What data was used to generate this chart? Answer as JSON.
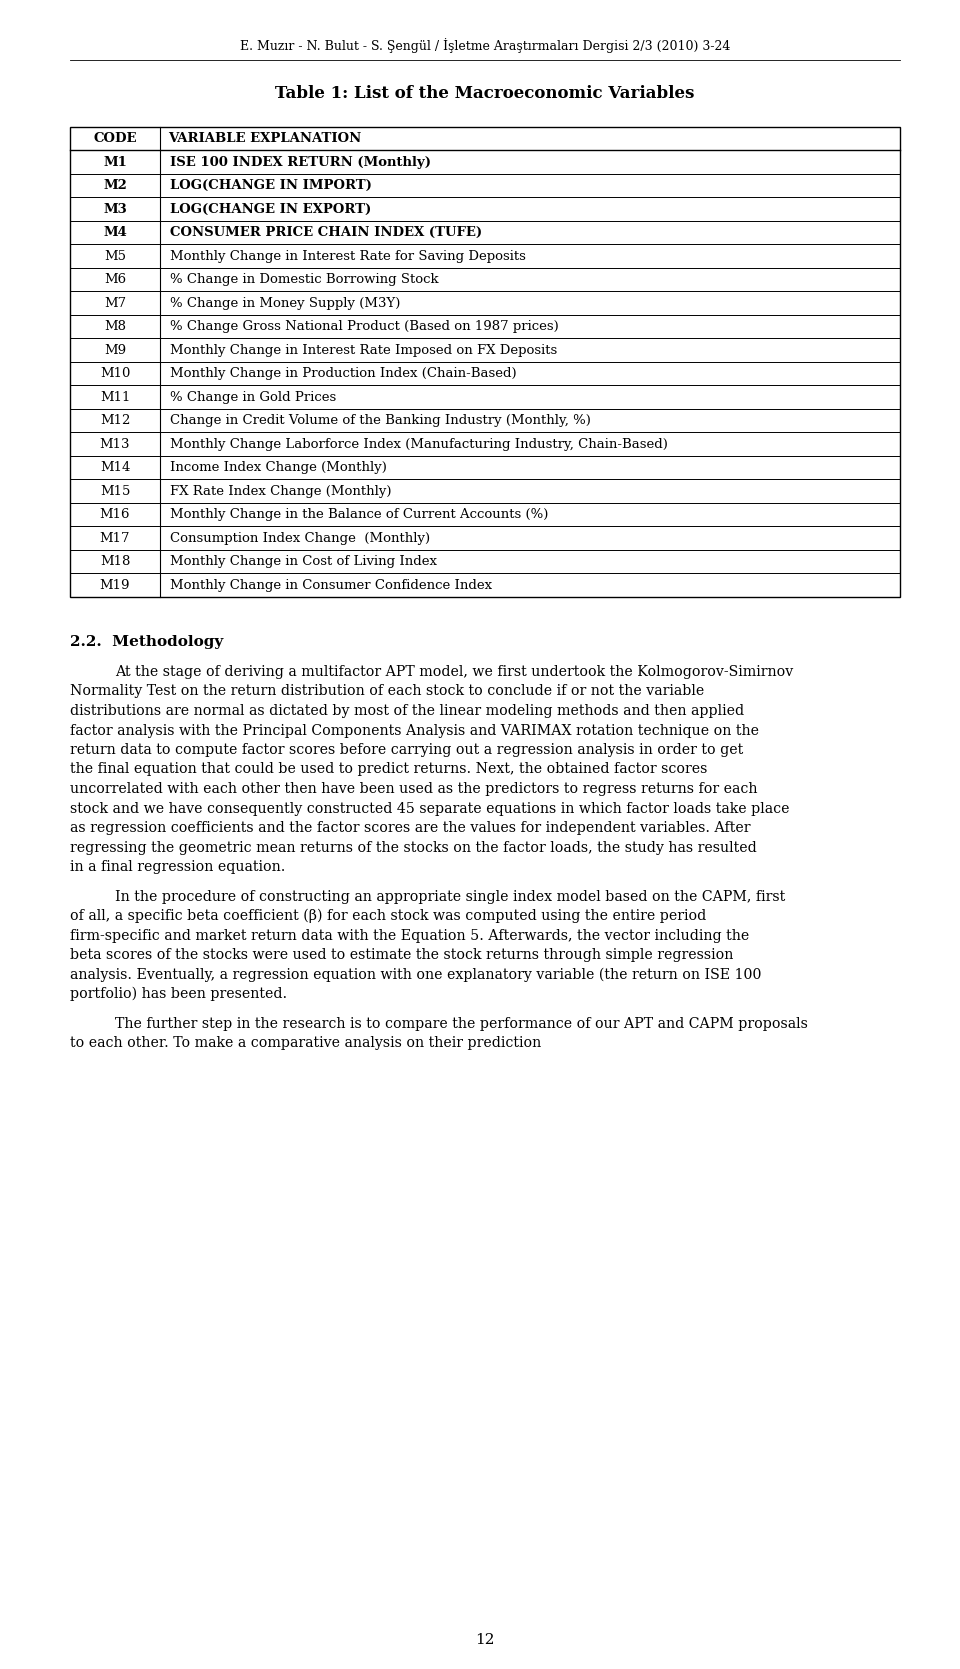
{
  "header": "E. Muzır - N. Bulut - S. Şengül / İşletme Araştırmaları Dergisi 2/3 (2010) 3-24",
  "table_title": "Table 1: List of the Macroeconomic Variables",
  "col1_header": "CODE",
  "col2_header": "VARIABLE EXPLANATION",
  "rows": [
    [
      "M1",
      "ISE 100 INDEX RETURN (Monthly)"
    ],
    [
      "M2",
      "LOG(CHANGE IN IMPORT)"
    ],
    [
      "M3",
      "LOG(CHANGE IN EXPORT)"
    ],
    [
      "M4",
      "CONSUMER PRICE CHAIN INDEX (TUFE)"
    ],
    [
      "M5",
      "Monthly Change in Interest Rate for Saving Deposits"
    ],
    [
      "M6",
      "% Change in Domestic Borrowing Stock"
    ],
    [
      "M7",
      "% Change in Money Supply (M3Y)"
    ],
    [
      "M8",
      "% Change Gross National Product (Based on 1987 prices)"
    ],
    [
      "M9",
      "Monthly Change in Interest Rate Imposed on FX Deposits"
    ],
    [
      "M10",
      "Monthly Change in Production Index (Chain-Based)"
    ],
    [
      "M11",
      "% Change in Gold Prices"
    ],
    [
      "M12",
      "Change in Credit Volume of the Banking Industry (Monthly, %)"
    ],
    [
      "M13",
      "Monthly Change Laborforce Index (Manufacturing Industry, Chain-Based)"
    ],
    [
      "M14",
      "Income Index Change (Monthly)"
    ],
    [
      "M15",
      "FX Rate Index Change (Monthly)"
    ],
    [
      "M16",
      "Monthly Change in the Balance of Current Accounts (%)"
    ],
    [
      "M17",
      "Consumption Index Change  (Monthly)"
    ],
    [
      "M18",
      "Monthly Change in Cost of Living Index"
    ],
    [
      "M19",
      "Monthly Change in Consumer Confidence Index"
    ]
  ],
  "section_title": "2.2.  Methodology",
  "paragraph1": "At the stage of deriving a multifactor APT model, we first undertook the Kolmogorov-Simirnov Normality Test on the return distribution of each stock to conclude if or not the variable distributions are normal as dictated by most of the linear modeling methods and then applied factor analysis with the Principal Components Analysis and VARIMAX rotation technique on the return data to compute factor scores before carrying out a regression analysis in order to get the final equation that could be used to predict returns. Next, the obtained factor scores uncorrelated with each other then have been used as the predictors to regress returns for each stock and we have consequently constructed 45 separate equations in which factor loads take place as regression coefficients and the factor scores are the values for independent variables. After regressing the geometric mean returns of the stocks on the factor loads, the study has resulted in a final regression equation.",
  "paragraph2": "In the procedure of constructing an appropriate single index model based on the CAPM, first of all, a specific beta coefficient (β) for each stock was computed using the entire period firm-specific and market return data with the Equation 5. Afterwards, the vector including the beta scores of the stocks were used to estimate the stock returns through simple regression analysis. Eventually, a regression equation with one explanatory variable (the return on ISE 100 portfolio) has been presented.",
  "paragraph3": "The further step in the research is to compare the performance of our APT and CAPM proposals to each other. To make a comparative analysis on their prediction",
  "page_number": "12",
  "bg_color": "#ffffff",
  "text_color": "#000000"
}
